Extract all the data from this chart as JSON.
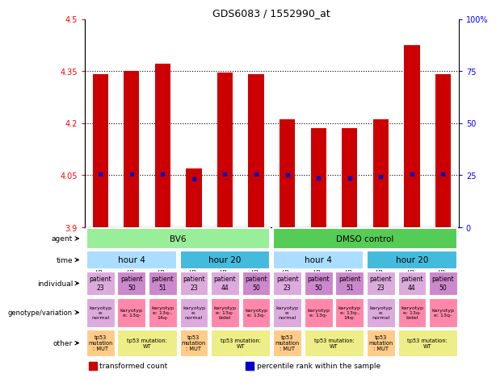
{
  "title": "GDS6083 / 1552990_at",
  "samples": [
    "GSM1528449",
    "GSM1528455",
    "GSM1528457",
    "GSM1528447",
    "GSM1528451",
    "GSM1528453",
    "GSM1528450",
    "GSM1528456",
    "GSM1528458",
    "GSM1528448",
    "GSM1528452",
    "GSM1528454"
  ],
  "bar_values": [
    4.34,
    4.35,
    4.37,
    4.07,
    4.345,
    4.34,
    4.21,
    4.185,
    4.185,
    4.21,
    4.425,
    4.34
  ],
  "dot_values": [
    4.052,
    4.052,
    4.052,
    4.04,
    4.052,
    4.052,
    4.05,
    4.042,
    4.042,
    4.045,
    4.052,
    4.052
  ],
  "ylim_left": [
    3.9,
    4.5
  ],
  "ylim_right": [
    0,
    100
  ],
  "yticks_left": [
    3.9,
    4.05,
    4.2,
    4.35,
    4.5
  ],
  "yticks_right": [
    0,
    25,
    50,
    75,
    100
  ],
  "ytick_labels_left": [
    "3.9",
    "4.05",
    "4.2",
    "4.35",
    "4.5"
  ],
  "ytick_labels_right": [
    "0",
    "25",
    "50",
    "75",
    "100%"
  ],
  "bar_bottom": 3.9,
  "bar_color": "#cc0000",
  "dot_color": "#0000cc",
  "agent_groups": [
    {
      "text": "BV6",
      "span": 6,
      "color": "#99ee99"
    },
    {
      "text": "DMSO control",
      "span": 6,
      "color": "#55cc55"
    }
  ],
  "time_groups": [
    {
      "text": "hour 4",
      "span": 3,
      "color": "#aaddff"
    },
    {
      "text": "hour 20",
      "span": 3,
      "color": "#44bbdd"
    },
    {
      "text": "hour 4",
      "span": 3,
      "color": "#aaddff"
    },
    {
      "text": "hour 20",
      "span": 3,
      "color": "#44bbdd"
    }
  ],
  "individual_cells": [
    {
      "text": "patient\n23",
      "color": "#ddaadd"
    },
    {
      "text": "patient\n50",
      "color": "#cc88cc"
    },
    {
      "text": "patient\n51",
      "color": "#cc88cc"
    },
    {
      "text": "patient\n23",
      "color": "#ddaadd"
    },
    {
      "text": "patient\n44",
      "color": "#ddaadd"
    },
    {
      "text": "patient\n50",
      "color": "#cc88cc"
    },
    {
      "text": "patient\n23",
      "color": "#ddaadd"
    },
    {
      "text": "patient\n50",
      "color": "#cc88cc"
    },
    {
      "text": "patient\n51",
      "color": "#cc88cc"
    },
    {
      "text": "patient\n23",
      "color": "#ddaadd"
    },
    {
      "text": "patient\n44",
      "color": "#ddaadd"
    },
    {
      "text": "patient\n50",
      "color": "#cc88cc"
    }
  ],
  "genotype_cells": [
    {
      "text": "karyotyp\ne:\nnormal",
      "color": "#ddaadd"
    },
    {
      "text": "karyotyp\ne: 13q-",
      "color": "#ff88aa"
    },
    {
      "text": "karyotyp\ne: 13q-,\n14q-",
      "color": "#ff88aa"
    },
    {
      "text": "karyotyp\ne:\nnormal",
      "color": "#ddaadd"
    },
    {
      "text": "karyotyp\ne: 13q-\nbidel",
      "color": "#ff88aa"
    },
    {
      "text": "karyotyp\ne: 13q-",
      "color": "#ff88aa"
    },
    {
      "text": "karyotyp\ne:\nnormal",
      "color": "#ddaadd"
    },
    {
      "text": "karyotyp\ne: 13q-",
      "color": "#ff88aa"
    },
    {
      "text": "karyotyp\ne: 13q-,\n14q-",
      "color": "#ff88aa"
    },
    {
      "text": "karyotyp\ne:\nnormal",
      "color": "#ddaadd"
    },
    {
      "text": "karyotyp\ne: 13q-\nbidel",
      "color": "#ff88aa"
    },
    {
      "text": "karyotyp\ne: 13q-",
      "color": "#ff88aa"
    }
  ],
  "other_cells": [
    {
      "text": "tp53\nmutation\n: MUT",
      "color": "#ffcc88",
      "span": 1
    },
    {
      "text": "tp53 mutation:\nWT",
      "color": "#eeee88",
      "span": 2
    },
    {
      "text": "tp53\nmutation\n: MUT",
      "color": "#ffcc88",
      "span": 1
    },
    {
      "text": "tp53 mutation:\nWT",
      "color": "#eeee88",
      "span": 2
    },
    {
      "text": "tp53\nmutation\n: MUT",
      "color": "#ffcc88",
      "span": 1
    },
    {
      "text": "tp53 mutation:\nWT",
      "color": "#eeee88",
      "span": 2
    },
    {
      "text": "tp53\nmutation\n: MUT",
      "color": "#ffcc88",
      "span": 1
    },
    {
      "text": "tp53 mutation:\nWT",
      "color": "#eeee88",
      "span": 2
    }
  ],
  "row_labels": [
    "agent",
    "time",
    "individual",
    "genotype/variation",
    "other"
  ],
  "legend_items": [
    {
      "color": "#cc0000",
      "label": "transformed count"
    },
    {
      "color": "#0000cc",
      "label": "percentile rank within the sample"
    }
  ]
}
